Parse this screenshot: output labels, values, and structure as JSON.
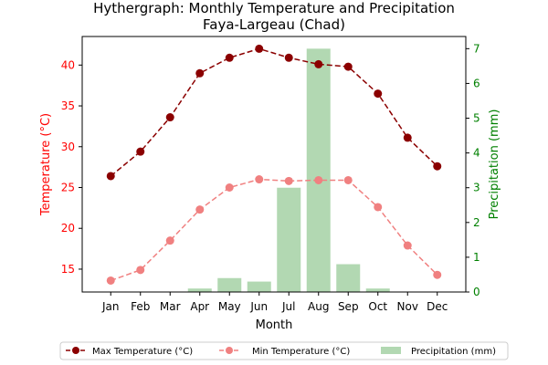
{
  "chart_data": {
    "type": "line",
    "title": "Hythergraph: Monthly Temperature and Precipitation",
    "subtitle": "Faya-Largeau (Chad)",
    "xlabel": "Month",
    "ylabel_left": "Temperature (°C)",
    "ylabel_right": "Precipitation (mm)",
    "categories": [
      "Jan",
      "Feb",
      "Mar",
      "Apr",
      "May",
      "Jun",
      "Jul",
      "Aug",
      "Sep",
      "Oct",
      "Nov",
      "Dec"
    ],
    "y_left_range": [
      12.2,
      43.5
    ],
    "y_left_ticks": [
      15,
      20,
      25,
      30,
      35,
      40
    ],
    "y_right_range": [
      0,
      7.35
    ],
    "y_right_ticks": [
      0,
      1,
      2,
      3,
      4,
      5,
      6,
      7
    ],
    "grid": false,
    "legend_placement": "bottom-center",
    "series": [
      {
        "name": "Max Temperature (°C)",
        "kind": "line",
        "axis": "left",
        "color": "#8b0000",
        "values": [
          26.4,
          29.4,
          33.6,
          39.0,
          40.9,
          42.0,
          40.9,
          40.1,
          39.8,
          36.5,
          31.1,
          27.6
        ]
      },
      {
        "name": "Min Temperature (°C)",
        "kind": "line",
        "axis": "left",
        "color": "#f08080",
        "values": [
          13.6,
          14.9,
          18.5,
          22.3,
          25.0,
          26.0,
          25.8,
          25.9,
          25.9,
          22.6,
          17.9,
          14.3
        ]
      },
      {
        "name": "Precipitation (mm)",
        "kind": "bar",
        "axis": "right",
        "color": "#b2d8b2",
        "values": [
          0,
          0,
          0,
          0.1,
          0.4,
          0.3,
          3.0,
          7.0,
          0.8,
          0.1,
          0,
          0
        ]
      }
    ]
  }
}
